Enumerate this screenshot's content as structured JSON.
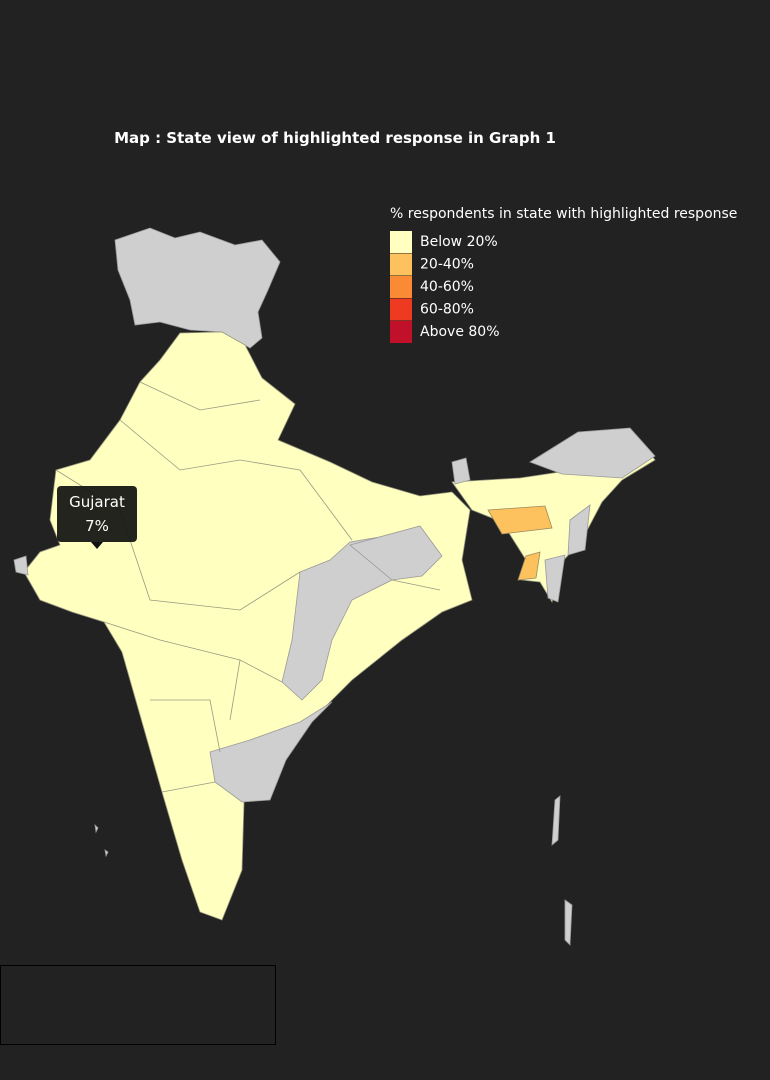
{
  "header": {
    "title": "Map : State view of highlighted response in Graph 1"
  },
  "legend": {
    "title": "% respondents in state with highlighted response",
    "items": [
      {
        "label": "Below 20%",
        "color": "#ffffc0"
      },
      {
        "label": "20-40%",
        "color": "#fdc25e"
      },
      {
        "label": "40-60%",
        "color": "#fb8a35"
      },
      {
        "label": "60-80%",
        "color": "#ee3a20"
      },
      {
        "label": "Above 80%",
        "color": "#c0102a"
      }
    ]
  },
  "tooltip": {
    "state": "Gujarat",
    "text": "7%"
  }
}
